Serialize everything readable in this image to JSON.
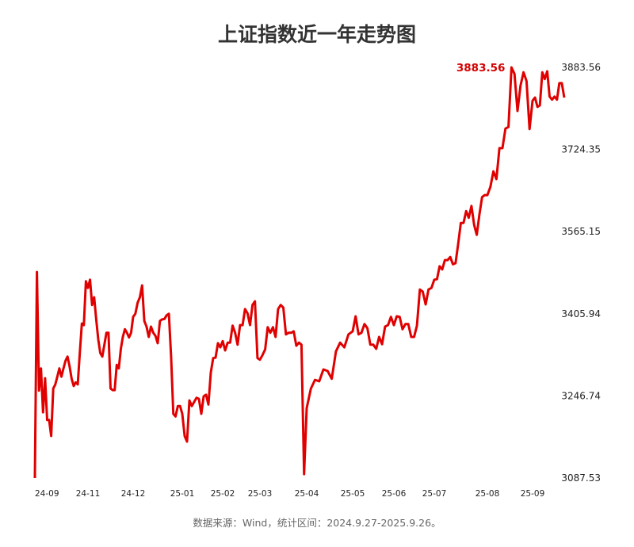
{
  "chart_data": {
    "type": "line",
    "title": "上证指数近一年走势图",
    "xlabel": "",
    "ylabel": "",
    "ylim": [
      3087.53,
      3883.56
    ],
    "y_ticks": [
      "3883.56",
      "3724.35",
      "3565.15",
      "3405.94",
      "3246.74",
      "3087.53"
    ],
    "x_ticks": [
      {
        "label": "24-09",
        "index": 0
      },
      {
        "label": "24-11",
        "index": 26
      },
      {
        "label": "24-12",
        "index": 48
      },
      {
        "label": "25-01",
        "index": 70
      },
      {
        "label": "25-02",
        "index": 87
      },
      {
        "label": "25-03",
        "index": 102
      },
      {
        "label": "25-04",
        "index": 120
      },
      {
        "label": "25-05",
        "index": 131
      },
      {
        "label": "25-06",
        "index": 145
      },
      {
        "label": "25-07",
        "index": 159
      },
      {
        "label": "25-08",
        "index": 179
      },
      {
        "label": "25-09",
        "index": 194
      }
    ],
    "grid": false,
    "line_color": "#e00000",
    "max_annotation": {
      "label": "3883.56",
      "index": 187,
      "color": "#d40000"
    },
    "values": [
      3087.53,
      3487,
      3257,
      3300,
      3215,
      3281,
      3200,
      3200,
      3169,
      3261,
      3269,
      3284,
      3300,
      3284,
      3300,
      3315,
      3323,
      3304,
      3280,
      3266,
      3273,
      3269,
      3330,
      3387,
      3384,
      3469,
      3456,
      3472,
      3423,
      3438,
      3395,
      3356,
      3330,
      3323,
      3346,
      3369,
      3369,
      3261,
      3258,
      3258,
      3307,
      3300,
      3338,
      3361,
      3376,
      3369,
      3360,
      3369,
      3400,
      3406,
      3427,
      3438,
      3461,
      3392,
      3381,
      3361,
      3381,
      3369,
      3363,
      3349,
      3392,
      3395,
      3396,
      3403,
      3406,
      3323,
      3212,
      3207,
      3227,
      3227,
      3212,
      3169,
      3158,
      3238,
      3227,
      3235,
      3243,
      3241,
      3212,
      3246,
      3249,
      3230,
      3292,
      3320,
      3321,
      3349,
      3341,
      3353,
      3335,
      3350,
      3350,
      3383,
      3369,
      3346,
      3384,
      3384,
      3415,
      3407,
      3384,
      3423,
      3430,
      3320,
      3317,
      3326,
      3337,
      3380,
      3369,
      3380,
      3361,
      3415,
      3423,
      3418,
      3366,
      3369,
      3369,
      3372,
      3344,
      3350,
      3346,
      3095,
      3223,
      3261,
      3278,
      3275,
      3298,
      3295,
      3280,
      3333,
      3350,
      3341,
      3366,
      3372,
      3401,
      3366,
      3369,
      3386,
      3378,
      3346,
      3346,
      3338,
      3361,
      3347,
      3381,
      3384,
      3400,
      3384,
      3401,
      3400,
      3376,
      3386,
      3386,
      3361,
      3361,
      3383,
      3453,
      3449,
      3424,
      3453,
      3456,
      3472,
      3473,
      3498,
      3492,
      3510,
      3510,
      3516,
      3502,
      3504,
      3541,
      3582,
      3582,
      3605,
      3592,
      3615,
      3578,
      3559,
      3599,
      3632,
      3636,
      3636,
      3652,
      3682,
      3667,
      3727,
      3727,
      3765,
      3768,
      3883.56,
      3871,
      3799,
      3848,
      3874,
      3857,
      3764,
      3819,
      3825,
      3807,
      3810,
      3874,
      3861,
      3876,
      3827,
      3821,
      3827,
      3821,
      3853,
      3853,
      3825
    ]
  },
  "footer": {
    "source": "数据来源：Wind，统计区间：2024.9.27-2025.9.26。"
  }
}
